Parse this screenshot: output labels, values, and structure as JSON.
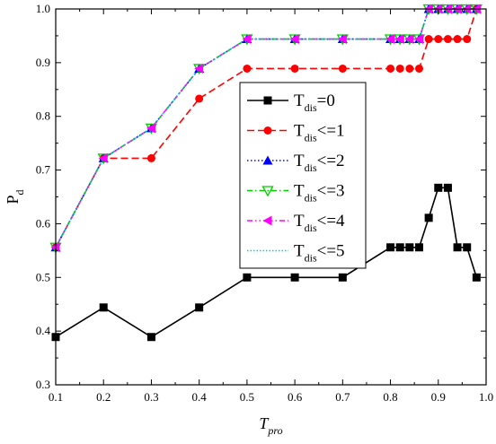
{
  "chart_data": {
    "type": "line",
    "xlabel": "T",
    "xlabel_sub": "pro",
    "ylabel": "P",
    "ylabel_sub": "d",
    "xlim": [
      0.1,
      1.0
    ],
    "ylim": [
      0.3,
      1.0
    ],
    "xticks": [
      "0.1",
      "0.2",
      "0.3",
      "0.4",
      "0.5",
      "0.6",
      "0.7",
      "0.8",
      "0.9",
      "1.0"
    ],
    "yticks": [
      "0.3",
      "0.4",
      "0.5",
      "0.6",
      "0.7",
      "0.8",
      "0.9",
      "1.0"
    ],
    "grid": false,
    "legend_position": "center",
    "series": [
      {
        "name": "T_dis=0",
        "label_main": "T",
        "label_sub": "dis",
        "label_tail": "=0",
        "color": "#000000",
        "marker": "square",
        "dash": "solid",
        "x": [
          0.1,
          0.2,
          0.3,
          0.4,
          0.5,
          0.6,
          0.7,
          0.8,
          0.82,
          0.84,
          0.86,
          0.88,
          0.9,
          0.92,
          0.94,
          0.96,
          0.98
        ],
        "y": [
          0.389,
          0.444,
          0.389,
          0.444,
          0.5,
          0.5,
          0.5,
          0.556,
          0.556,
          0.556,
          0.556,
          0.611,
          0.667,
          0.667,
          0.556,
          0.556,
          0.5
        ]
      },
      {
        "name": "T_dis<=1",
        "label_main": "T",
        "label_sub": "dis",
        "label_tail": "<=1",
        "color": "#ff0000",
        "marker": "circle",
        "dash": "dash",
        "x": [
          0.1,
          0.2,
          0.3,
          0.4,
          0.5,
          0.6,
          0.7,
          0.8,
          0.82,
          0.84,
          0.86,
          0.88,
          0.9,
          0.92,
          0.94,
          0.96,
          0.98
        ],
        "y": [
          0.556,
          0.722,
          0.722,
          0.833,
          0.889,
          0.889,
          0.889,
          0.889,
          0.889,
          0.889,
          0.889,
          0.944,
          0.944,
          0.944,
          0.944,
          0.944,
          1.0
        ]
      },
      {
        "name": "T_dis<=2",
        "label_main": "T",
        "label_sub": "dis",
        "label_tail": "<=2",
        "color": "#0000ff",
        "marker": "triangle-up",
        "dash": "dot",
        "x": [
          0.1,
          0.2,
          0.3,
          0.4,
          0.5,
          0.6,
          0.7,
          0.8,
          0.82,
          0.84,
          0.86,
          0.88,
          0.9,
          0.92,
          0.94,
          0.96,
          0.98
        ],
        "y": [
          0.556,
          0.722,
          0.778,
          0.889,
          0.944,
          0.944,
          0.944,
          0.944,
          0.944,
          0.944,
          0.944,
          1.0,
          1.0,
          1.0,
          1.0,
          1.0,
          1.0
        ]
      },
      {
        "name": "T_dis<=3",
        "label_main": "T",
        "label_sub": "dis",
        "label_tail": "<=3",
        "color": "#00cc00",
        "marker": "triangle-down",
        "dash": "dashdot",
        "x": [
          0.1,
          0.2,
          0.3,
          0.4,
          0.5,
          0.6,
          0.7,
          0.8,
          0.82,
          0.84,
          0.86,
          0.88,
          0.9,
          0.92,
          0.94,
          0.96,
          0.98
        ],
        "y": [
          0.556,
          0.722,
          0.778,
          0.889,
          0.944,
          0.944,
          0.944,
          0.944,
          0.944,
          0.944,
          0.944,
          1.0,
          1.0,
          1.0,
          1.0,
          1.0,
          1.0
        ]
      },
      {
        "name": "T_dis<=4",
        "label_main": "T",
        "label_sub": "dis",
        "label_tail": "<=4",
        "color": "#ff00ff",
        "marker": "triangle-left",
        "dash": "dashdotdot",
        "x": [
          0.1,
          0.2,
          0.3,
          0.4,
          0.5,
          0.6,
          0.7,
          0.8,
          0.82,
          0.84,
          0.86,
          0.88,
          0.9,
          0.92,
          0.94,
          0.96,
          0.98
        ],
        "y": [
          0.556,
          0.722,
          0.778,
          0.889,
          0.944,
          0.944,
          0.944,
          0.944,
          0.944,
          0.944,
          0.944,
          1.0,
          1.0,
          1.0,
          1.0,
          1.0,
          1.0
        ]
      },
      {
        "name": "T_dis<=5",
        "label_main": "T",
        "label_sub": "dis",
        "label_tail": "<=5",
        "color": "#00cccc",
        "marker": "none",
        "dash": "shortdot",
        "x": [
          0.1,
          0.2,
          0.3,
          0.4,
          0.5,
          0.6,
          0.7,
          0.8,
          0.82,
          0.84,
          0.86,
          0.88,
          0.9,
          0.92,
          0.94,
          0.96,
          0.98
        ],
        "y": [
          0.556,
          0.722,
          0.778,
          0.889,
          0.944,
          0.944,
          0.944,
          0.944,
          0.944,
          0.944,
          0.944,
          1.0,
          1.0,
          1.0,
          1.0,
          1.0,
          1.0
        ]
      }
    ]
  }
}
